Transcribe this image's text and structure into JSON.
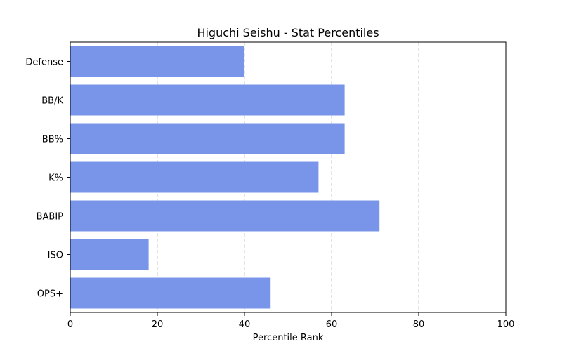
{
  "chart_data": {
    "type": "bar",
    "orientation": "horizontal",
    "title": "Higuchi Seishu - Stat Percentiles",
    "xlabel": "Percentile Rank",
    "ylabel": "",
    "xlim": [
      0,
      100
    ],
    "x_ticks": [
      "0",
      "20",
      "40",
      "60",
      "80",
      "100"
    ],
    "categories": [
      "Defense",
      "BB/K",
      "BB%",
      "K%",
      "BABIP",
      "ISO",
      "OPS+"
    ],
    "values": [
      40,
      63,
      63,
      57,
      71,
      18,
      46
    ],
    "bar_color": "#7995ea",
    "grid": "x-dashed"
  }
}
